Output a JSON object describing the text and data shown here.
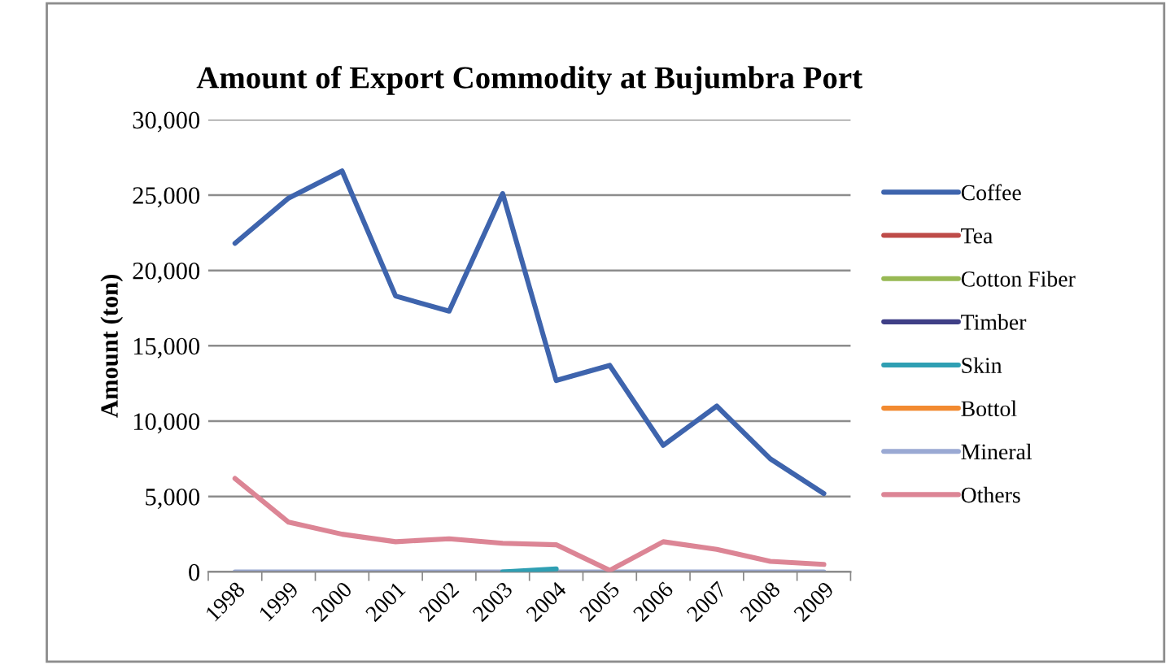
{
  "chart_data": {
    "type": "line",
    "title": "Amount of Export Commodity at Bujumbra Port",
    "ylabel": "Amount (ton)",
    "categories": [
      "1998",
      "1999",
      "2000",
      "2001",
      "2002",
      "2003",
      "2004",
      "2005",
      "2006",
      "2007",
      "2008",
      "2009"
    ],
    "series": [
      {
        "name": "Coffee",
        "color": "#3e64ad",
        "values": [
          21800,
          24800,
          26600,
          18300,
          17300,
          25100,
          12700,
          13700,
          8400,
          11000,
          7500,
          5200
        ]
      },
      {
        "name": "Tea",
        "color": "#be4b48",
        "values": [
          null,
          null,
          null,
          null,
          null,
          null,
          null,
          null,
          null,
          null,
          null,
          null
        ]
      },
      {
        "name": "Cotton Fiber",
        "color": "#98b954",
        "values": [
          null,
          null,
          null,
          null,
          null,
          null,
          null,
          null,
          null,
          null,
          null,
          null
        ]
      },
      {
        "name": "Timber",
        "color": "#3f3f86",
        "values": [
          null,
          null,
          null,
          null,
          null,
          null,
          null,
          null,
          null,
          null,
          null,
          null
        ]
      },
      {
        "name": "Skin",
        "color": "#2f9fb3",
        "values": [
          null,
          null,
          null,
          null,
          null,
          0,
          200,
          null,
          null,
          null,
          null,
          null
        ]
      },
      {
        "name": "Bottol",
        "color": "#f28a30",
        "values": [
          null,
          null,
          null,
          null,
          null,
          null,
          null,
          null,
          null,
          null,
          null,
          null
        ]
      },
      {
        "name": "Mineral",
        "color": "#9aa9d3",
        "values": [
          0,
          0,
          0,
          0,
          0,
          0,
          0,
          0,
          0,
          0,
          0,
          0
        ]
      },
      {
        "name": "Others",
        "color": "#dc8595",
        "values": [
          6200,
          3300,
          2500,
          2000,
          2200,
          1900,
          1800,
          100,
          2000,
          1500,
          700,
          500
        ]
      }
    ],
    "ylim": [
      0,
      30000
    ],
    "yticks": [
      {
        "value": 0,
        "label": "0"
      },
      {
        "value": 5000,
        "label": "5,000"
      },
      {
        "value": 10000,
        "label": "10,000"
      },
      {
        "value": 15000,
        "label": "15,000"
      },
      {
        "value": 20000,
        "label": "20,000"
      },
      {
        "value": 25000,
        "label": "25,000"
      },
      {
        "value": 30000,
        "label": "30,000"
      }
    ],
    "grid": "y",
    "legend": "right",
    "marker": "none",
    "line_style": "solid"
  }
}
